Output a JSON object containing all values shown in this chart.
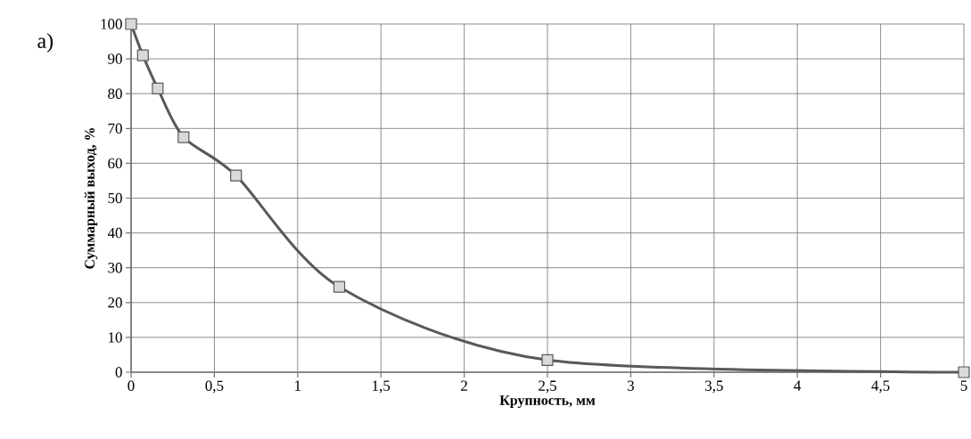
{
  "chart_data": {
    "type": "line",
    "xlabel": "Крупность, мм",
    "ylabel": "Суммарный выход, %",
    "annotations": [
      "а)"
    ],
    "x": [
      0,
      0.071,
      0.16,
      0.315,
      0.63,
      1.25,
      2.5,
      5
    ],
    "series": [
      {
        "color": "#595959",
        "values": [
          100,
          91,
          81.5,
          67.5,
          56.5,
          24.5,
          3.5,
          0
        ]
      }
    ],
    "xlim": [
      0,
      5
    ],
    "ylim": [
      0,
      100
    ],
    "xticks": [
      0,
      {
        "value": 0.5,
        "label": "0,5"
      },
      1,
      {
        "value": 1.5,
        "label": "1,5"
      },
      2,
      {
        "value": 2.5,
        "label": "2,5"
      },
      3,
      {
        "value": 3.5,
        "label": "3,5"
      },
      4,
      {
        "value": 4.5,
        "label": "4,5"
      },
      5
    ],
    "yticks": [
      0,
      10,
      20,
      30,
      40,
      50,
      60,
      70,
      80,
      90,
      100
    ],
    "grid": true,
    "marker": "square",
    "line_style": "solid"
  }
}
